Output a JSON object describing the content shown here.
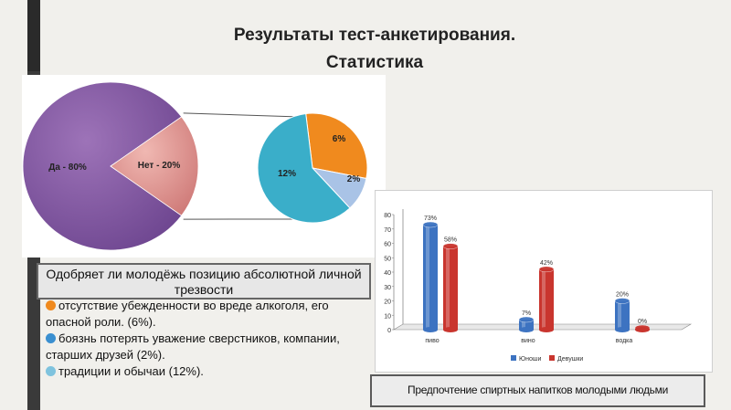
{
  "title": {
    "line1": "Результаты тест-анкетирования.",
    "line2": "Статистика"
  },
  "colors": {
    "purple": "#8a5aa6",
    "pink": "#e09a96",
    "orange": "#f08a1e",
    "teal": "#3aaec9",
    "light_blue": "#a9c3e6",
    "bar_blue": "#3d73c1",
    "bar_red": "#c9352e"
  },
  "pie_caption": "Одобряет ли молодёжь позицию абсолютной личной трезвости",
  "reasons": [
    {
      "text": "отсутствие убежденности во вреде алкоголя, его опасной роли. (6%).",
      "color": "#f08a1e",
      "icon": "orange-bullet-icon"
    },
    {
      "text": "боязнь потерять уважение сверстников, компании, старших друзей (2%).",
      "color": "#3a8fd0",
      "icon": "blue-bullet-icon"
    },
    {
      "text": "традиции и обычаи (12%).",
      "color": "#7fc3de",
      "icon": "light-blue-bullet-icon"
    }
  ],
  "bar_caption": "Предпочтение спиртных напитков молодыми людьми",
  "chart_data": [
    {
      "type": "pie",
      "slices": [
        {
          "label": "Да - 80%",
          "value": 80,
          "color": "#8a5aa6"
        },
        {
          "label": "Нет - 20%",
          "value": 20,
          "color": "#e09a96"
        }
      ]
    },
    {
      "type": "pie",
      "slices": [
        {
          "label": "6%",
          "value": 6,
          "color": "#f08a1e"
        },
        {
          "label": "2%",
          "value": 2,
          "color": "#a9c3e6"
        },
        {
          "label": "12%",
          "value": 12,
          "color": "#3aaec9"
        }
      ]
    },
    {
      "type": "bar",
      "categories": [
        "пиво",
        "вино",
        "водка"
      ],
      "series": [
        {
          "name": "Юноши",
          "values": [
            73,
            7,
            20
          ],
          "labels": [
            "73%",
            "7%",
            "20%"
          ],
          "color": "#3d73c1"
        },
        {
          "name": "Девушки",
          "values": [
            58,
            42,
            0
          ],
          "labels": [
            "58%",
            "42%",
            "0%"
          ],
          "color": "#c9352e"
        }
      ],
      "ylim": [
        0,
        80
      ],
      "yticks": [
        "0",
        "10",
        "20",
        "30",
        "40",
        "50",
        "60",
        "70",
        "80"
      ],
      "grid": false,
      "legend": "bottom"
    }
  ]
}
